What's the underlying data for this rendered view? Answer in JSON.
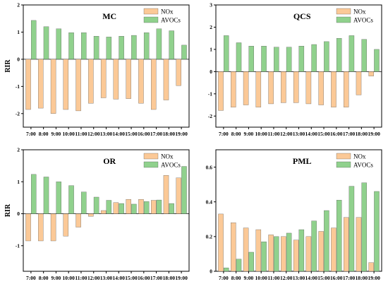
{
  "colors": {
    "nox": "#fbc997",
    "avocs": "#90d18d",
    "bar_stroke": "#444444",
    "axis": "#000000"
  },
  "chart_data": [
    {
      "type": "bar",
      "title": "MC",
      "ylabel": "RIR",
      "categories": [
        "7:00",
        "8:00",
        "9:00",
        "10:00",
        "11:00",
        "12:00",
        "13:00",
        "14:00",
        "15:00",
        "16:00",
        "17:00",
        "18:00",
        "19:00"
      ],
      "ylim": [
        -2.5,
        2
      ],
      "yticks": [
        -2,
        -1,
        0,
        1,
        2
      ],
      "series": [
        {
          "name": "NOx",
          "values": [
            -1.85,
            -1.8,
            -2.0,
            -1.85,
            -1.9,
            -1.62,
            -1.42,
            -1.47,
            -1.45,
            -1.62,
            -1.85,
            -1.5,
            -0.97
          ]
        },
        {
          "name": "AVOCs",
          "values": [
            1.43,
            1.2,
            1.12,
            0.98,
            0.98,
            0.85,
            0.82,
            0.85,
            0.88,
            0.98,
            1.12,
            1.05,
            0.52
          ]
        }
      ],
      "legend": "top-right"
    },
    {
      "type": "bar",
      "title": "QCS",
      "ylabel": "",
      "categories": [
        "7:00",
        "8:00",
        "9:00",
        "10:00",
        "11:00",
        "12:00",
        "13:00",
        "14:00",
        "15:00",
        "16:00",
        "17:00",
        "18:00",
        "19:00"
      ],
      "ylim": [
        -2.5,
        3
      ],
      "yticks": [
        -2,
        -1,
        0,
        1,
        2,
        3
      ],
      "series": [
        {
          "name": "NOx",
          "values": [
            -1.75,
            -1.6,
            -1.5,
            -1.6,
            -1.45,
            -1.4,
            -1.4,
            -1.45,
            -1.5,
            -1.6,
            -1.6,
            -1.05,
            -0.2
          ]
        },
        {
          "name": "AVOCs",
          "values": [
            1.62,
            1.3,
            1.15,
            1.15,
            1.1,
            1.1,
            1.15,
            1.22,
            1.35,
            1.5,
            1.62,
            1.45,
            1.0
          ]
        }
      ],
      "legend": "top-right"
    },
    {
      "type": "bar",
      "title": "OR",
      "ylabel": "RIR",
      "categories": [
        "7:00",
        "8:00",
        "9:00",
        "10:00",
        "11:00",
        "12:00",
        "13:00",
        "14:00",
        "15:00",
        "16:00",
        "17:00",
        "18:00",
        "19:00"
      ],
      "ylim": [
        -1.8,
        2
      ],
      "yticks": [
        -1,
        0,
        1,
        2
      ],
      "series": [
        {
          "name": "NOx",
          "values": [
            -0.85,
            -0.85,
            -0.85,
            -0.7,
            -0.42,
            -0.08,
            0.1,
            0.35,
            0.45,
            0.45,
            0.42,
            1.2,
            1.12
          ]
        },
        {
          "name": "AVOCs",
          "values": [
            1.23,
            1.15,
            1.0,
            0.88,
            0.68,
            0.52,
            0.42,
            0.32,
            0.3,
            0.38,
            0.43,
            0.32,
            1.48
          ]
        }
      ],
      "legend": "top-right"
    },
    {
      "type": "bar",
      "title": "PML",
      "ylabel": "",
      "categories": [
        "7:00",
        "8:00",
        "9:00",
        "10:00",
        "11:00",
        "12:00",
        "13:00",
        "14:00",
        "15:00",
        "16:00",
        "17:00",
        "18:00",
        "19:00"
      ],
      "ylim": [
        0,
        0.7
      ],
      "yticks": [
        0,
        0.2,
        0.4,
        0.6
      ],
      "series": [
        {
          "name": "NOx",
          "values": [
            0.33,
            0.28,
            0.25,
            0.24,
            0.21,
            0.2,
            0.18,
            0.2,
            0.23,
            0.25,
            0.31,
            0.31,
            0.05
          ]
        },
        {
          "name": "AVOCs",
          "values": [
            0.02,
            0.07,
            0.11,
            0.17,
            0.2,
            0.22,
            0.24,
            0.29,
            0.35,
            0.41,
            0.49,
            0.51,
            0.46
          ]
        }
      ],
      "legend": "top-right"
    }
  ]
}
